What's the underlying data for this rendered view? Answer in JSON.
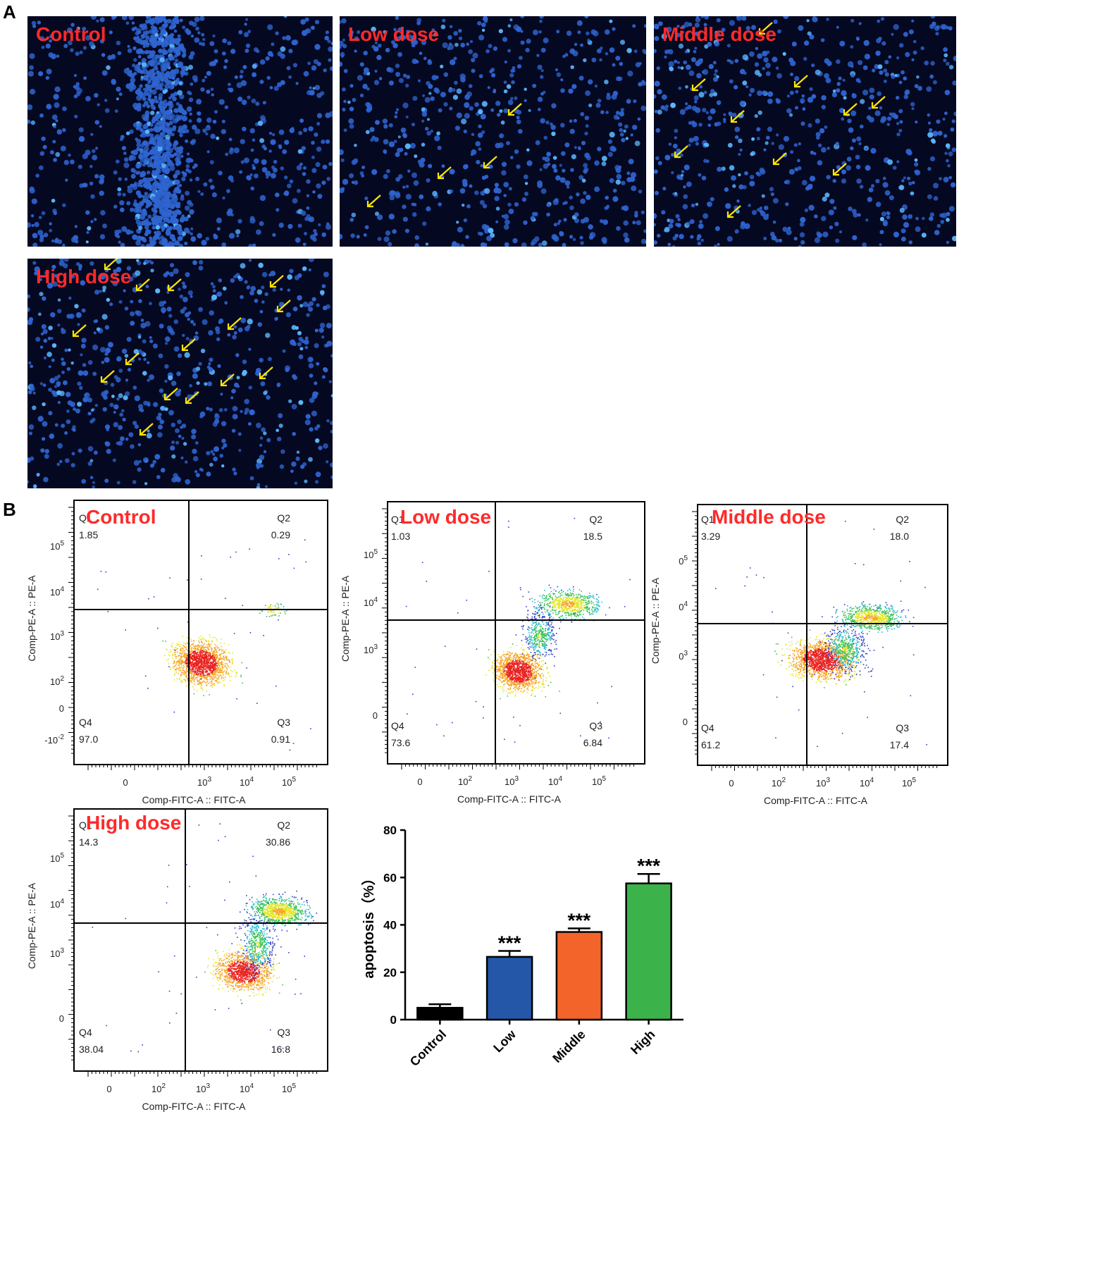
{
  "panels": {
    "a": "A",
    "b": "B"
  },
  "microscopy": [
    {
      "label": "Control",
      "arrows": 0
    },
    {
      "label": "Low dose",
      "arrows": 4
    },
    {
      "label": "Middle dose",
      "arrows": 10
    },
    {
      "label": "High dose",
      "arrows": 15
    }
  ],
  "flow": {
    "xlabel": "Comp-FITC-A :: FITC-A",
    "ylabel": "Comp-PE-A :: PE-A",
    "plots": [
      {
        "label": "Control",
        "q1": "Q1",
        "q1v": "1.85",
        "q2": "Q2",
        "q2v": "0.29",
        "q3": "Q3",
        "q3v": "0.91",
        "q4": "Q4",
        "q4v": "97.0",
        "xticks": [
          "0",
          "10",
          "10",
          "10"
        ],
        "xexp": [
          "",
          "3",
          "4",
          "5"
        ],
        "yticks": [
          "10",
          "10",
          "10",
          "10",
          "0",
          "-10"
        ],
        "yexp": [
          "5",
          "4",
          "3",
          "2",
          "",
          "-2"
        ]
      },
      {
        "label": "Low dose",
        "q1": "Q1",
        "q1v": "1.03",
        "q2": "Q2",
        "q2v": "18.5",
        "q3": "Q3",
        "q3v": "6.84",
        "q4": "Q4",
        "q4v": "73.6",
        "xticks": [
          "0",
          "10",
          "10",
          "10",
          "10"
        ],
        "xexp": [
          "",
          "2",
          "3",
          "4",
          "5"
        ],
        "yticks": [
          "10",
          "10",
          "10",
          "0"
        ],
        "yexp": [
          "5",
          "4",
          "3",
          ""
        ]
      },
      {
        "label": "Middle dose",
        "q1": "Q1",
        "q1v": "3.29",
        "q2": "Q2",
        "q2v": "18.0",
        "q3": "Q3",
        "q3v": "17.4",
        "q4": "Q4",
        "q4v": "61.2",
        "xticks": [
          "0",
          "10",
          "10",
          "10",
          "10"
        ],
        "xexp": [
          "",
          "2",
          "3",
          "4",
          "5"
        ],
        "yticks": [
          "0",
          "0",
          "0",
          "0"
        ],
        "yexp": [
          "5",
          "4",
          "3",
          ""
        ]
      },
      {
        "label": "High dose",
        "q1": "Q1",
        "q1v": "14.3",
        "q2": "Q2",
        "q2v": "30.86",
        "q3": "Q3",
        "q3v": "16.8",
        "q4": "Q4",
        "q4v": "38.04",
        "xticks": [
          "0",
          "10",
          "10",
          "10",
          "10"
        ],
        "xexp": [
          "",
          "2",
          "3",
          "4",
          "5"
        ],
        "yticks": [
          "10",
          "10",
          "10",
          "0"
        ],
        "yexp": [
          "5",
          "4",
          "3",
          ""
        ]
      }
    ]
  },
  "chart_data": {
    "type": "bar",
    "categories": [
      "Control",
      "Low",
      "Middle",
      "High"
    ],
    "values": [
      5,
      26.5,
      37,
      57.5
    ],
    "errors": [
      1.5,
      2.5,
      1.5,
      4
    ],
    "significance": [
      "",
      "***",
      "***",
      "***"
    ],
    "colors": [
      "#000000",
      "#2457a8",
      "#f2642a",
      "#3cb34a"
    ],
    "ylabel": "apoptosis（%）",
    "ylim": [
      0,
      80
    ],
    "yticks": [
      0,
      20,
      40,
      60,
      80
    ]
  }
}
